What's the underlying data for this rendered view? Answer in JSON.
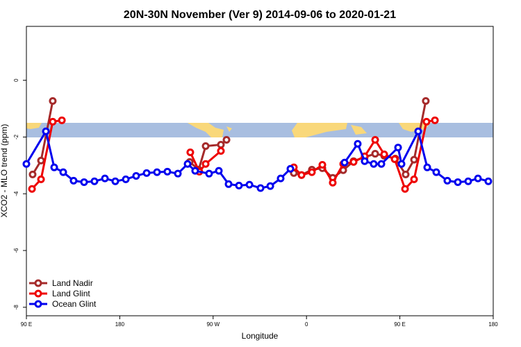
{
  "chart_data": {
    "type": "line",
    "title": "20N-30N November (Ver 9)   2014-09-06 to 2020-01-21",
    "x_label": "Longitude",
    "y_label": "XCO2 - MLO trend (ppm)",
    "xlim": [
      90,
      540
    ],
    "ylim": [
      -8.3,
      1.9
    ],
    "xticks": [
      {
        "value": 90,
        "label": "90 E"
      },
      180,
      {
        "value": 270,
        "label": "90 W"
      },
      {
        "value": 360,
        "label": "0"
      },
      {
        "value": 450,
        "label": "90 E"
      },
      {
        "value": 540,
        "label": "180"
      }
    ],
    "yticks": [
      0,
      -2,
      -4,
      -6,
      -8
    ],
    "legend": "bottomleft",
    "series": [
      {
        "name": "Land Nadir",
        "color": "#a52a2a",
        "x": [
          96,
          104.1,
          115.4,
          null,
          247.4,
          256.1,
          262.8,
          277.5,
          282.9,
          null,
          347.8,
          355.2,
          365.2,
          375.3,
          385.3,
          395.4,
          405.4,
          416.1,
          426.2,
          434.9,
          445.6,
          455.6,
          463.7,
          475
        ],
        "values": [
          -3.32,
          -2.83,
          -0.73,
          null,
          -2.88,
          -3.15,
          -2.32,
          -2.27,
          -2.1,
          null,
          -3.27,
          -3.34,
          -3.15,
          -3.1,
          -3.44,
          -3.17,
          -2.85,
          -2.71,
          -2.59,
          -2.66,
          -2.76,
          -3.32,
          -2.8,
          -0.73
        ]
      },
      {
        "name": "Land Glint",
        "color": "#ee0000",
        "x": [
          95.4,
          104.1,
          115.4,
          124.2,
          null,
          248,
          256.7,
          262.8,
          277.5,
          null,
          347.8,
          355.2,
          365.2,
          375.3,
          385.3,
          395.4,
          405.4,
          416.1,
          426.2,
          434.9,
          445,
          455,
          463.7,
          475.7,
          483.8
        ],
        "values": [
          -3.83,
          -3.49,
          -1.46,
          -1.41,
          null,
          -2.54,
          -3.22,
          -2.95,
          -2.49,
          null,
          -3.07,
          -3.34,
          -3.24,
          -2.98,
          -3.61,
          -2.95,
          -2.88,
          -2.68,
          -2.1,
          -2.61,
          -2.78,
          -3.83,
          -3.49,
          -1.46,
          -1.41
        ]
      },
      {
        "name": "Ocean Glint",
        "color": "#0000ee",
        "x": [
          90,
          108.8,
          116.8,
          125.5,
          135.5,
          145.6,
          155.6,
          165.7,
          175.7,
          185.8,
          195.8,
          205.9,
          215.9,
          225.9,
          236,
          245.4,
          252.7,
          266.1,
          275.5,
          284.9,
          294.9,
          305,
          315.7,
          325.1,
          335.1,
          344.5,
          null,
          396.7,
          409.4,
          416.1,
          424.8,
          432.2,
          448.3,
          451.6,
          467.7,
          476.4,
          485.1,
          495.8,
          505.9,
          515.9,
          525.3,
          535.3
        ],
        "values": [
          -2.95,
          -1.8,
          -3.07,
          -3.24,
          -3.54,
          -3.59,
          -3.56,
          -3.46,
          -3.56,
          -3.49,
          -3.37,
          -3.27,
          -3.24,
          -3.22,
          -3.29,
          -2.95,
          -3.19,
          -3.29,
          -3.19,
          -3.66,
          -3.71,
          -3.68,
          -3.8,
          -3.73,
          -3.46,
          -3.12,
          null,
          -2.9,
          -2.24,
          -2.85,
          -2.95,
          -2.95,
          -2.37,
          -2.95,
          -1.8,
          -3.07,
          -3.24,
          -3.54,
          -3.59,
          -3.56,
          -3.46,
          -3.56
        ]
      }
    ]
  }
}
